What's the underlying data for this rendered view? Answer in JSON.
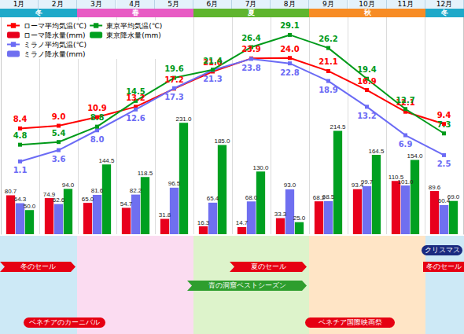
{
  "chart_data": {
    "type": "bar_line",
    "categories": [
      "1月",
      "2月",
      "3月",
      "4月",
      "5月",
      "6月",
      "7月",
      "8月",
      "9月",
      "10月",
      "11月",
      "12月"
    ],
    "ylim": [
      -15,
      33
    ],
    "y2lim": [
      0,
      450
    ],
    "tick_labels": false,
    "legend": "upper left",
    "data_labels": true,
    "series": [
      {
        "name": "ローマ平均気温(℃)",
        "type": "line",
        "color": "#ff0000",
        "marker": "square",
        "values": [
          8.4,
          9.0,
          10.9,
          13.2,
          17.2,
          21.0,
          23.9,
          24.0,
          21.1,
          16.9,
          12.1,
          9.4
        ],
        "value_labels": [
          "8.4",
          "9.0",
          "10.9",
          "13.2",
          "17.2",
          "21.0",
          "23.9",
          "24.0",
          "21.1",
          "16.9",
          "12.1",
          "9.4"
        ]
      },
      {
        "name": "ローマ降水量(mm)",
        "type": "bar",
        "axis": "y2",
        "color": "#e8001c",
        "values": [
          80.7,
          74.9,
          65.0,
          54.7,
          31.8,
          16.3,
          14.7,
          33.3,
          68.2,
          93.4,
          110.5,
          89.6
        ],
        "value_labels": [
          "80.7",
          "74.9",
          "65.0",
          "54.7",
          "31.8",
          "16.3",
          "14.7",
          "33.3",
          "68.2",
          "93.4",
          "110.5",
          "89.6"
        ]
      },
      {
        "name": "ミラノ平均気温(℃)",
        "type": "line",
        "color": "#6b6bf5",
        "marker": "square",
        "values": [
          1.1,
          3.6,
          8.0,
          12.6,
          17.3,
          21.3,
          23.8,
          22.8,
          18.9,
          13.2,
          6.9,
          2.5
        ],
        "value_labels": [
          "1.1",
          "3.6",
          "8.0",
          "12.6",
          "17.3",
          "21.3",
          "23.8",
          "22.8",
          "18.9",
          "13.2",
          "6.9",
          "2.5"
        ]
      },
      {
        "name": "ミラノ降水量(mm)",
        "type": "bar",
        "axis": "y2",
        "color": "#6f6ff0",
        "values": [
          64.3,
          62.6,
          81.6,
          82.2,
          96.5,
          65.4,
          68.0,
          93.0,
          68.5,
          99.7,
          101.0,
          60.4
        ],
        "value_labels": [
          "64.3",
          "62.6",
          "81.6",
          "82.2",
          "96.5",
          "65.4",
          "68.0",
          "93.0",
          "68.5",
          "99.7",
          "101.0",
          "60.4"
        ]
      },
      {
        "name": "東京平均気温(℃)",
        "type": "line",
        "color": "#009a1a",
        "marker": "square",
        "values": [
          4.8,
          5.4,
          8.8,
          14.5,
          19.6,
          21.4,
          26.4,
          29.1,
          26.2,
          19.4,
          12.7,
          7.3
        ],
        "value_labels": [
          "4.8",
          "5.4",
          "8.8",
          "14.5",
          "19.6",
          "21.4",
          "26.4",
          "29.1",
          "26.2",
          "19.4",
          "12.7",
          "7.3"
        ]
      },
      {
        "name": "東京降水量(mm)",
        "type": "bar",
        "axis": "y2",
        "color": "#00a020",
        "values": [
          50.0,
          94.0,
          144.5,
          118.5,
          231.0,
          185.0,
          130.0,
          25.0,
          214.5,
          164.5,
          154.0,
          69.0
        ],
        "value_labels": [
          "50.0",
          "94.0",
          "144.5",
          "118.5",
          "231.0",
          "185.0",
          "130.0",
          "25.0",
          "214.5",
          "164.5",
          "154.0",
          "69.0"
        ]
      }
    ]
  },
  "header": {
    "seasons": [
      {
        "label": "冬",
        "months": 2
      },
      {
        "label": "春",
        "months": 3
      },
      {
        "label": "夏",
        "months": 3
      },
      {
        "label": "秋",
        "months": 3
      },
      {
        "label": "冬",
        "months": 1
      }
    ]
  },
  "events": [
    "冬のセール",
    "ベネチアのカーニバル",
    "夏のセール",
    "青の洞窟ベストシーズン",
    "ベネチア国際映画祭",
    "クリスマス",
    "冬のセール"
  ]
}
